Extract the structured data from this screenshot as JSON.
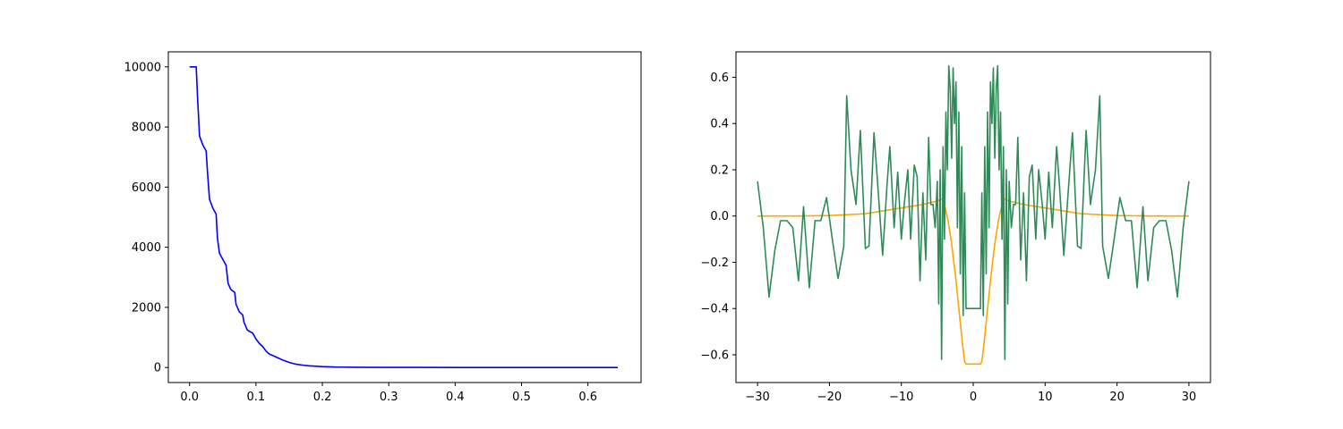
{
  "chart_data": [
    {
      "type": "line",
      "title": "",
      "xlabel": "",
      "ylabel": "",
      "xlim": [
        -0.032,
        0.68
      ],
      "ylim": [
        -500,
        10500
      ],
      "xticks": [
        0.0,
        0.1,
        0.2,
        0.3,
        0.4,
        0.5,
        0.6
      ],
      "xtick_labels": [
        "0.0",
        "0.1",
        "0.2",
        "0.3",
        "0.4",
        "0.5",
        "0.6"
      ],
      "yticks": [
        0,
        2000,
        4000,
        6000,
        8000,
        10000
      ],
      "ytick_labels": [
        "0",
        "2000",
        "4000",
        "6000",
        "8000",
        "10000"
      ],
      "grid": false,
      "legend": "none",
      "series": [
        {
          "color": "#0000ff",
          "x": [
            0.0,
            0.01,
            0.012,
            0.015,
            0.02,
            0.025,
            0.027,
            0.03,
            0.035,
            0.04,
            0.042,
            0.045,
            0.05,
            0.055,
            0.058,
            0.062,
            0.068,
            0.07,
            0.075,
            0.08,
            0.082,
            0.087,
            0.09,
            0.095,
            0.1,
            0.105,
            0.11,
            0.115,
            0.12,
            0.13,
            0.14,
            0.15,
            0.16,
            0.17,
            0.18,
            0.2,
            0.22,
            0.25,
            0.3,
            0.35,
            0.4,
            0.5,
            0.6,
            0.645
          ],
          "y": [
            10000,
            10000,
            9000,
            7700,
            7400,
            7200,
            6500,
            5600,
            5300,
            5100,
            4300,
            3800,
            3600,
            3400,
            2800,
            2600,
            2500,
            2100,
            1850,
            1750,
            1500,
            1250,
            1200,
            1150,
            950,
            800,
            700,
            550,
            450,
            350,
            250,
            170,
            110,
            80,
            55,
            30,
            15,
            8,
            4,
            2,
            1,
            0,
            0,
            0
          ]
        }
      ]
    },
    {
      "type": "line",
      "title": "",
      "xlabel": "",
      "ylabel": "",
      "xlim": [
        -33,
        33
      ],
      "ylim": [
        -0.72,
        0.71
      ],
      "xticks": [
        -30,
        -20,
        -10,
        0,
        10,
        20,
        30
      ],
      "xtick_labels": [
        "−30",
        "−20",
        "−10",
        "0",
        "10",
        "20",
        "30"
      ],
      "yticks": [
        -0.6,
        -0.4,
        -0.2,
        0.0,
        0.2,
        0.4,
        0.6
      ],
      "ytick_labels": [
        "−0.6",
        "−0.4",
        "−0.2",
        "0.0",
        "0.2",
        "0.4",
        "0.6"
      ],
      "grid": false,
      "legend": "none",
      "series": [
        {
          "color": "#ffa500",
          "x": [
            -30,
            -25,
            -20,
            -15,
            -10,
            -7,
            -5,
            -4.3,
            -4,
            -3.5,
            -3,
            -2.5,
            -2,
            -1.5,
            -1.2,
            -1,
            1,
            1.2,
            1.5,
            2,
            2.5,
            3,
            3.5,
            4,
            4.3,
            5,
            7,
            10,
            15,
            20,
            25,
            30
          ],
          "y": [
            0.0,
            0.0,
            0.002,
            0.01,
            0.035,
            0.05,
            0.065,
            0.075,
            0.05,
            -0.02,
            -0.12,
            -0.25,
            -0.4,
            -0.55,
            -0.63,
            -0.64,
            -0.64,
            -0.63,
            -0.55,
            -0.4,
            -0.25,
            -0.12,
            -0.02,
            0.05,
            0.075,
            0.065,
            0.05,
            0.035,
            0.01,
            0.002,
            0.0,
            0.0
          ]
        },
        {
          "color": "#2e8b57",
          "x": [
            -30,
            -29.2,
            -28.4,
            -27.6,
            -26.8,
            -25.9,
            -25.1,
            -24.3,
            -23.6,
            -22.8,
            -22.0,
            -21.2,
            -20.4,
            -19.6,
            -18.8,
            -18.0,
            -17.6,
            -17.0,
            -16.3,
            -15.7,
            -15.0,
            -14.5,
            -13.8,
            -13.2,
            -12.6,
            -12.0,
            -11.6,
            -11.0,
            -10.5,
            -10.0,
            -9.6,
            -9.1,
            -8.7,
            -8.2,
            -7.8,
            -7.4,
            -7.0,
            -6.6,
            -6.2,
            -5.9,
            -5.6,
            -5.3,
            -5.0,
            -4.8,
            -4.6,
            -4.4,
            -4.2,
            -4.0,
            -3.8,
            -3.6,
            -3.4,
            -3.2,
            -3.0,
            -2.8,
            -2.6,
            -2.4,
            -2.2,
            -2.0,
            -1.8,
            -1.6,
            -1.4,
            -1.2,
            -1.0,
            1.0,
            1.2,
            1.4,
            1.6,
            1.8,
            2.0,
            2.2,
            2.4,
            2.6,
            2.8,
            3.0,
            3.2,
            3.4,
            3.6,
            3.8,
            4.0,
            4.2,
            4.4,
            4.6,
            4.8,
            5.0,
            5.3,
            5.6,
            5.9,
            6.2,
            6.6,
            7.0,
            7.4,
            7.8,
            8.2,
            8.7,
            9.1,
            9.6,
            10.0,
            10.5,
            11.0,
            11.6,
            12.0,
            12.6,
            13.2,
            13.8,
            14.5,
            15.0,
            15.7,
            16.3,
            17.0,
            17.6,
            18.0,
            18.8,
            19.6,
            20.4,
            21.2,
            22.0,
            22.8,
            23.6,
            24.3,
            25.1,
            25.9,
            26.8,
            27.6,
            28.4,
            29.2,
            30
          ],
          "y": [
            0.15,
            -0.05,
            -0.35,
            -0.15,
            -0.02,
            -0.02,
            -0.05,
            -0.28,
            0.04,
            -0.31,
            -0.02,
            -0.02,
            0.08,
            -0.1,
            -0.27,
            -0.13,
            0.52,
            0.2,
            0.05,
            0.37,
            -0.14,
            -0.13,
            0.36,
            0.1,
            -0.17,
            0.13,
            0.3,
            -0.05,
            0.19,
            -0.1,
            0.05,
            0.2,
            -0.1,
            0.22,
            0.17,
            -0.28,
            0.1,
            -0.19,
            0.34,
            0.05,
            0.05,
            -0.05,
            0.15,
            -0.38,
            0.2,
            -0.62,
            0.3,
            -0.1,
            0.45,
            0.2,
            0.65,
            0.55,
            0.25,
            0.64,
            0.4,
            0.58,
            -0.05,
            0.45,
            -0.25,
            0.3,
            -0.43,
            0.1,
            -0.4,
            -0.4,
            0.1,
            -0.43,
            0.3,
            -0.25,
            0.45,
            -0.05,
            0.58,
            0.4,
            0.64,
            0.25,
            0.55,
            0.65,
            0.2,
            0.45,
            -0.1,
            0.3,
            -0.62,
            0.2,
            -0.38,
            0.15,
            -0.05,
            0.05,
            0.05,
            0.34,
            -0.19,
            0.1,
            -0.28,
            0.17,
            0.22,
            -0.1,
            0.2,
            0.05,
            -0.1,
            0.19,
            -0.05,
            0.3,
            0.13,
            -0.17,
            0.1,
            0.36,
            -0.13,
            -0.14,
            0.37,
            0.05,
            0.2,
            0.52,
            -0.13,
            -0.27,
            -0.1,
            0.08,
            -0.02,
            -0.02,
            -0.31,
            0.04,
            -0.28,
            -0.05,
            -0.02,
            -0.02,
            -0.15,
            -0.35,
            -0.05,
            0.15
          ]
        }
      ]
    }
  ]
}
